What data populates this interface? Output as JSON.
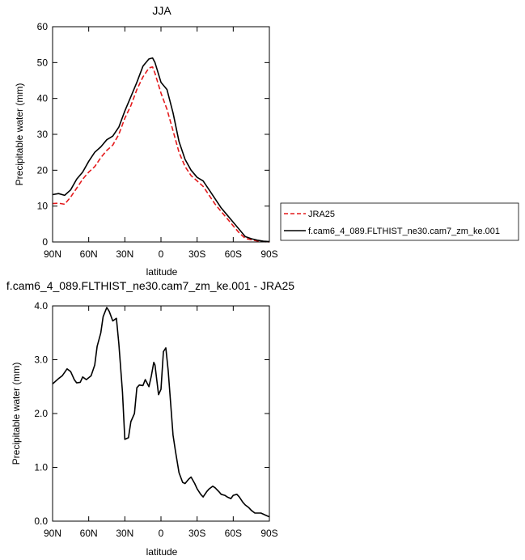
{
  "chart_data": [
    {
      "type": "line",
      "title": "JJA",
      "xlabel": "latitude",
      "ylabel": "Precipitable water (mm)",
      "xlim": [
        90,
        -90
      ],
      "ylim": [
        0,
        60
      ],
      "xticks": [
        90,
        60,
        30,
        0,
        -30,
        -60,
        -90
      ],
      "xtick_labels": [
        "90N",
        "60N",
        "30N",
        "0",
        "30S",
        "60S",
        "90S"
      ],
      "yticks": [
        0,
        10,
        20,
        30,
        40,
        50,
        60
      ],
      "ytick_labels": [
        "0",
        "10",
        "20",
        "30",
        "40",
        "50",
        "60"
      ],
      "grid": false,
      "legend_position": "right",
      "series": [
        {
          "name": "JRA25",
          "color": "#e41a1c",
          "dash": "dashed",
          "x": [
            90,
            85,
            80,
            75,
            70,
            65,
            60,
            55,
            50,
            45,
            40,
            35,
            30,
            25,
            20,
            15,
            10,
            7,
            5,
            0,
            -5,
            -10,
            -15,
            -20,
            -25,
            -30,
            -35,
            -40,
            -45,
            -50,
            -55,
            -60,
            -65,
            -70,
            -75,
            -80,
            -85,
            -90
          ],
          "y": [
            10.7,
            10.8,
            10.5,
            12.5,
            15.0,
            17.5,
            19.5,
            21.0,
            23.5,
            25.5,
            27.0,
            30.0,
            34.5,
            38.0,
            42.5,
            46.0,
            48.5,
            48.8,
            47.0,
            41.5,
            37.0,
            31.0,
            25.0,
            21.0,
            18.5,
            17.0,
            15.5,
            13.0,
            10.5,
            8.5,
            6.5,
            4.5,
            2.5,
            1.0,
            0.6,
            0.3,
            0.1,
            0.0
          ]
        },
        {
          "name": "f.cam6_4_089.FLTHIST_ne30.cam7_zm_ke.001",
          "color": "#000000",
          "dash": "solid",
          "x": [
            90,
            85,
            80,
            75,
            70,
            65,
            60,
            55,
            50,
            45,
            40,
            35,
            30,
            25,
            20,
            15,
            10,
            7,
            5,
            0,
            -5,
            -10,
            -15,
            -20,
            -25,
            -30,
            -35,
            -40,
            -45,
            -50,
            -55,
            -60,
            -65,
            -70,
            -75,
            -80,
            -85,
            -90
          ],
          "y": [
            13.2,
            13.5,
            13.0,
            14.5,
            17.5,
            19.5,
            22.5,
            25.0,
            26.5,
            28.5,
            29.5,
            32.0,
            36.5,
            40.5,
            44.5,
            49.0,
            51.0,
            51.3,
            50.0,
            44.5,
            42.5,
            36.0,
            28.0,
            23.0,
            20.0,
            18.0,
            17.0,
            14.5,
            12.0,
            9.5,
            7.5,
            5.5,
            3.5,
            1.5,
            0.9,
            0.5,
            0.2,
            0.1
          ]
        }
      ]
    },
    {
      "type": "line",
      "title": "f.cam6_4_089.FLTHIST_ne30.cam7_zm_ke.001 - JRA25",
      "xlabel": "latitude",
      "ylabel": "Precipitable water (mm)",
      "xlim": [
        90,
        -90
      ],
      "ylim": [
        0,
        4
      ],
      "xticks": [
        90,
        60,
        30,
        0,
        -30,
        -60,
        -90
      ],
      "xtick_labels": [
        "90N",
        "60N",
        "30N",
        "0",
        "30S",
        "60S",
        "90S"
      ],
      "yticks": [
        0,
        1,
        2,
        3,
        4
      ],
      "ytick_labels": [
        "0.0",
        "1.0",
        "2.0",
        "3.0",
        "4.0"
      ],
      "grid": false,
      "series": [
        {
          "color": "#000000",
          "dash": "solid",
          "x": [
            90,
            85,
            82,
            78,
            75,
            72,
            70,
            67,
            65,
            62,
            58,
            55,
            53,
            50,
            48,
            45,
            43,
            40,
            37,
            35,
            32,
            30,
            27,
            25,
            22,
            20,
            18,
            15,
            13,
            10,
            8,
            6,
            5,
            2,
            0,
            -2,
            -4,
            -6,
            -8,
            -10,
            -12,
            -15,
            -18,
            -20,
            -23,
            -25,
            -28,
            -30,
            -33,
            -35,
            -38,
            -40,
            -43,
            -45,
            -48,
            -50,
            -53,
            -55,
            -58,
            -60,
            -63,
            -65,
            -68,
            -70,
            -73,
            -75,
            -78,
            -80,
            -83,
            -85,
            -88,
            -90
          ],
          "y": [
            2.55,
            2.65,
            2.7,
            2.83,
            2.78,
            2.63,
            2.57,
            2.58,
            2.68,
            2.63,
            2.7,
            2.9,
            3.25,
            3.5,
            3.8,
            3.97,
            3.9,
            3.72,
            3.77,
            3.3,
            2.4,
            1.52,
            1.55,
            1.85,
            2.0,
            2.48,
            2.53,
            2.52,
            2.63,
            2.5,
            2.7,
            2.95,
            2.9,
            2.35,
            2.45,
            3.15,
            3.22,
            2.8,
            2.2,
            1.6,
            1.3,
            0.9,
            0.72,
            0.7,
            0.78,
            0.82,
            0.7,
            0.6,
            0.5,
            0.45,
            0.55,
            0.6,
            0.65,
            0.62,
            0.55,
            0.5,
            0.48,
            0.45,
            0.42,
            0.48,
            0.5,
            0.45,
            0.35,
            0.3,
            0.25,
            0.2,
            0.15,
            0.15,
            0.15,
            0.13,
            0.1,
            0.08
          ]
        }
      ]
    }
  ]
}
